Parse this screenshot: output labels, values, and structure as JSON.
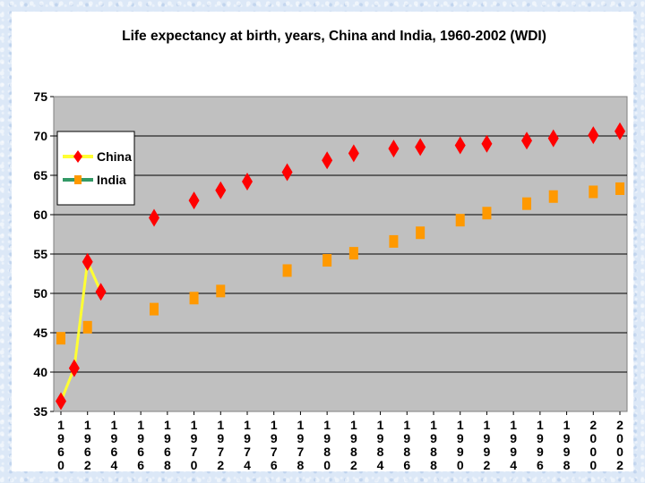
{
  "chart_data": {
    "type": "line",
    "title": "Life expectancy at birth, years, China and India, 1960-2002 (WDI)",
    "xlabel": "",
    "ylabel": "",
    "xlim": [
      1960,
      2002
    ],
    "ylim": [
      35,
      75
    ],
    "y_ticks": [
      "35",
      "40",
      "45",
      "50",
      "55",
      "60",
      "65",
      "70",
      "75"
    ],
    "x_ticks": [
      "1960",
      "1962",
      "1964",
      "1966",
      "1968",
      "1970",
      "1972",
      "1974",
      "1976",
      "1978",
      "1980",
      "1982",
      "1984",
      "1986",
      "1988",
      "1990",
      "1992",
      "1994",
      "1996",
      "1998",
      "2000",
      "2002"
    ],
    "grid": "horizontal",
    "legend_position": "top-left",
    "plot_background": "#c0c0c0",
    "series": [
      {
        "name": "China",
        "line_color": "#ffff33",
        "marker": "diamond",
        "marker_color": "#ff0000",
        "x": [
          1960,
          1961,
          1962,
          1963,
          1967,
          1970,
          1972,
          1974,
          1977,
          1980,
          1982,
          1985,
          1987,
          1990,
          1992,
          1995,
          1997,
          2000,
          2002
        ],
        "y": [
          36.3,
          40.5,
          54.0,
          50.2,
          59.6,
          61.8,
          63.1,
          64.2,
          65.4,
          66.9,
          67.8,
          68.4,
          68.6,
          68.8,
          69.0,
          69.4,
          69.7,
          70.1,
          70.6
        ],
        "line_segment_points": 4
      },
      {
        "name": "India",
        "line_color": "#339966",
        "marker": "square",
        "marker_color": "#ff9900",
        "x": [
          1960,
          1962,
          1967,
          1970,
          1972,
          1977,
          1980,
          1982,
          1985,
          1987,
          1990,
          1992,
          1995,
          1997,
          2000,
          2002
        ],
        "y": [
          44.3,
          45.7,
          48.0,
          49.4,
          50.3,
          52.9,
          54.2,
          55.1,
          56.6,
          57.7,
          59.3,
          60.2,
          61.4,
          62.3,
          62.9,
          63.3
        ]
      }
    ]
  }
}
